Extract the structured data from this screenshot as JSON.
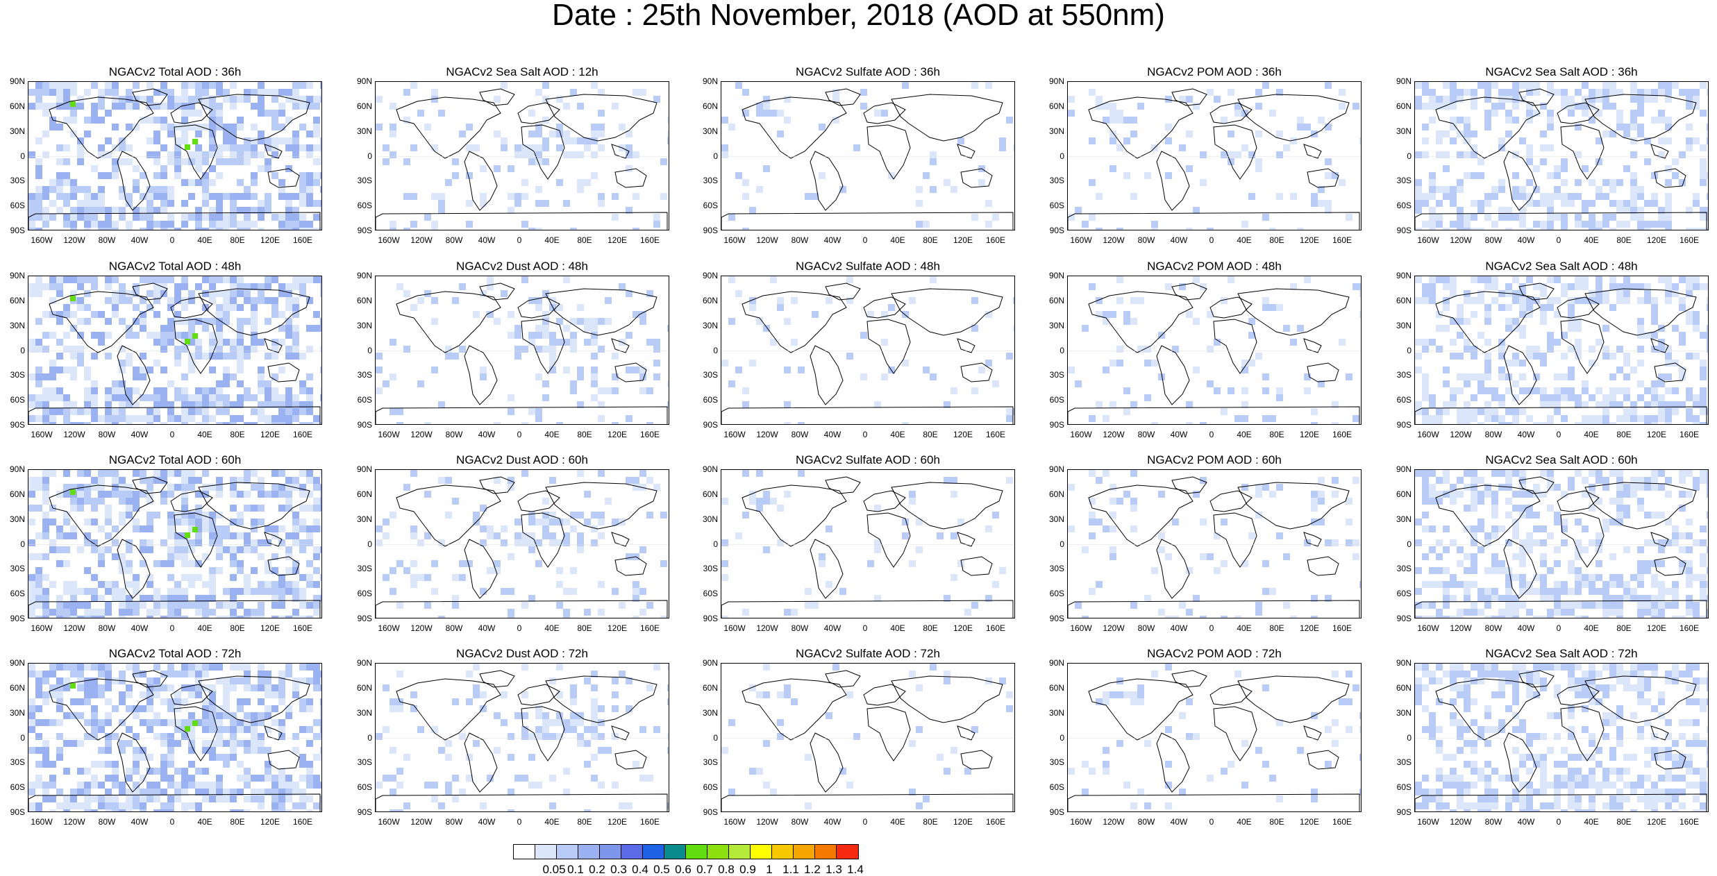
{
  "title": "Date : 25th November, 2018 (AOD at 550nm)",
  "panels": [
    [
      "NGACv2 Total AOD : 36h",
      "NGACv2 Sea Salt  AOD : 12h",
      "NGACv2 Sulfate AOD : 36h",
      "NGACv2 POM AOD : 36h",
      "NGACv2 Sea Salt AOD : 36h"
    ],
    [
      "NGACv2 Total AOD : 48h",
      "NGACv2 Dust AOD : 48h",
      "NGACv2 Sulfate AOD : 48h",
      "NGACv2 POM AOD : 48h",
      "NGACv2 Sea Salt AOD : 48h"
    ],
    [
      "NGACv2 Total AOD : 60h",
      "NGACv2 Dust AOD : 60h",
      "NGACv2 Sulfate AOD : 60h",
      "NGACv2 POM AOD : 60h",
      "NGACv2 Sea Salt AOD : 60h"
    ],
    [
      "NGACv2 Total AOD : 72h",
      "NGACv2 Dust AOD : 72h",
      "NGACv2 Sulfate AOD : 72h",
      "NGACv2 POM AOD : 72h",
      "NGACv2 Sea Salt  AOD : 72h"
    ]
  ],
  "lat_ticks": [
    "90N",
    "60N",
    "30N",
    "0",
    "30S",
    "60S",
    "90S"
  ],
  "lon_ticks": [
    "160W",
    "120W",
    "80W",
    "40W",
    "0",
    "40E",
    "80E",
    "120E",
    "160E"
  ],
  "colorbar": {
    "labels": [
      "0.05",
      "0.1",
      "0.2",
      "0.3",
      "0.4",
      "0.5",
      "0.6",
      "0.7",
      "0.8",
      "0.9",
      "1",
      "1.1",
      "1.2",
      "1.3",
      "1.4"
    ],
    "colors": [
      "#ffffff",
      "#dce6fb",
      "#b9cbf7",
      "#9bb2f2",
      "#7e96ec",
      "#5b6ae6",
      "#1f62e6",
      "#0a8c8c",
      "#62dd10",
      "#8ce010",
      "#b5ea3a",
      "#ffff00",
      "#f8c800",
      "#f7a600",
      "#f77a00",
      "#f52a10"
    ]
  }
}
